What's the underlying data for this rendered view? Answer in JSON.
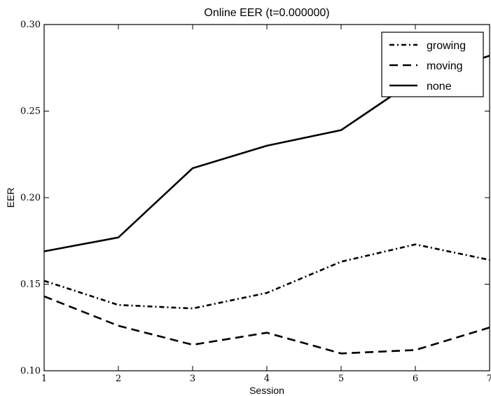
{
  "chart_data": {
    "type": "line",
    "title": "Online EER (t=0.000000)",
    "xlabel": "Session",
    "ylabel": "EER",
    "x": [
      1,
      2,
      3,
      4,
      5,
      6,
      7
    ],
    "xlim": [
      1,
      7
    ],
    "ylim": [
      0.1,
      0.3
    ],
    "xticks": [
      "1",
      "2",
      "3",
      "4",
      "5",
      "6",
      "7"
    ],
    "yticks": [
      "0.10",
      "0.15",
      "0.20",
      "0.25",
      "0.30"
    ],
    "grid": false,
    "legend_position": "top-right",
    "series": [
      {
        "name": "growing",
        "style": "dash-dot",
        "values": [
          0.152,
          0.138,
          0.136,
          0.145,
          0.163,
          0.173,
          0.164
        ]
      },
      {
        "name": "moving",
        "style": "dashed",
        "values": [
          0.143,
          0.126,
          0.115,
          0.122,
          0.11,
          0.112,
          0.125
        ]
      },
      {
        "name": "none",
        "style": "solid",
        "values": [
          0.169,
          0.177,
          0.217,
          0.23,
          0.239,
          0.268,
          0.282
        ]
      }
    ]
  }
}
